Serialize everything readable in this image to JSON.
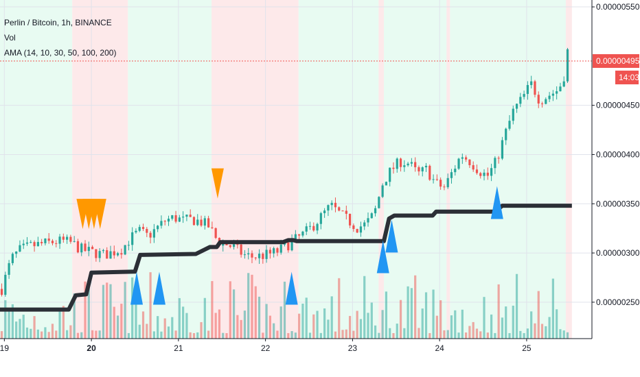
{
  "header": {
    "symbol_line": "Perlin / Bitcoin, 1h, BINANCE",
    "vol_label": "Vol",
    "ama_label": "AMA (14, 10, 30, 50, 100, 200)"
  },
  "price_tag": {
    "value": "0.00000495",
    "countdown": "14:03"
  },
  "colors": {
    "up": "#26a69a",
    "down": "#ef5350",
    "bg_green": "#e8fbf2",
    "bg_red": "#fde9ea",
    "ama_line": "#2b2f36",
    "marker_up": "#2196f3",
    "marker_down": "#ff9800",
    "price_line": "#ef5350"
  },
  "chart_data": {
    "type": "candlestick",
    "ylim": [
      2.13e-06,
      5.57e-06
    ],
    "xlim": [
      18.95,
      25.75
    ],
    "y_ticks": [
      "0.00000550",
      "0.00000450",
      "0.00000400",
      "0.00000350",
      "0.00000300",
      "0.00000250"
    ],
    "y_tick_values": [
      5.5e-06,
      4.5e-06,
      4e-06,
      3.5e-06,
      3e-06,
      2.5e-06
    ],
    "x_ticks": [
      "19",
      "20",
      "21",
      "22",
      "23",
      "24",
      "25"
    ],
    "x_tick_values": [
      19,
      20,
      21,
      22,
      23,
      24,
      25
    ],
    "regime_bands": [
      {
        "from": 18.95,
        "to": 19.78,
        "state": "bull"
      },
      {
        "from": 19.78,
        "to": 20.42,
        "state": "bear"
      },
      {
        "from": 20.42,
        "to": 21.38,
        "state": "bull"
      },
      {
        "from": 21.38,
        "to": 22.38,
        "state": "bear"
      },
      {
        "from": 22.38,
        "to": 23.3,
        "state": "bull"
      },
      {
        "from": 23.3,
        "to": 23.36,
        "state": "bear"
      },
      {
        "from": 23.36,
        "to": 24.08,
        "state": "bull"
      },
      {
        "from": 24.08,
        "to": 24.12,
        "state": "bear"
      },
      {
        "from": 24.12,
        "to": 25.45,
        "state": "bull"
      },
      {
        "from": 25.45,
        "to": 25.52,
        "state": "bear"
      }
    ],
    "price_path": [
      [
        18.97,
        2.635e-06
      ],
      [
        19.08,
        2.94e-06
      ],
      [
        19.18,
        3.03e-06
      ],
      [
        19.3,
        3.07e-06
      ],
      [
        19.42,
        3.09e-06
      ],
      [
        19.55,
        3.11e-06
      ],
      [
        19.67,
        3.12e-06
      ],
      [
        19.78,
        3.1e-06
      ],
      [
        19.87,
        3.04e-06
      ],
      [
        19.95,
        3.02e-06
      ],
      [
        20.05,
        3e-06
      ],
      [
        20.15,
        2.98e-06
      ],
      [
        20.25,
        3.01e-06
      ],
      [
        20.35,
        3.04e-06
      ],
      [
        20.45,
        3.15e-06
      ],
      [
        20.55,
        3.22e-06
      ],
      [
        20.65,
        3.17e-06
      ],
      [
        20.75,
        3.25e-06
      ],
      [
        20.85,
        3.33e-06
      ],
      [
        20.95,
        3.36e-06
      ],
      [
        21.05,
        3.33e-06
      ],
      [
        21.15,
        3.34e-06
      ],
      [
        21.25,
        3.32e-06
      ],
      [
        21.35,
        3.27e-06
      ],
      [
        21.45,
        3.12e-06
      ],
      [
        21.55,
        3.09e-06
      ],
      [
        21.65,
        3.05e-06
      ],
      [
        21.75,
        2.98e-06
      ],
      [
        21.85,
        2.96e-06
      ],
      [
        21.95,
        2.97e-06
      ],
      [
        22.05,
        2.99e-06
      ],
      [
        22.15,
        3.02e-06
      ],
      [
        22.25,
        3.08e-06
      ],
      [
        22.35,
        3.14e-06
      ],
      [
        22.45,
        3.2e-06
      ],
      [
        22.55,
        3.28e-06
      ],
      [
        22.65,
        3.38e-06
      ],
      [
        22.75,
        3.48e-06
      ],
      [
        22.85,
        3.4e-06
      ],
      [
        22.95,
        3.33e-06
      ],
      [
        23.05,
        3.26e-06
      ],
      [
        23.15,
        3.29e-06
      ],
      [
        23.25,
        3.4e-06
      ],
      [
        23.35,
        3.72e-06
      ],
      [
        23.45,
        3.85e-06
      ],
      [
        23.55,
        3.93e-06
      ],
      [
        23.65,
        3.91e-06
      ],
      [
        23.75,
        3.8e-06
      ],
      [
        23.85,
        3.85e-06
      ],
      [
        23.95,
        3.71e-06
      ],
      [
        24.05,
        3.66e-06
      ],
      [
        24.15,
        3.83e-06
      ],
      [
        24.25,
        4e-06
      ],
      [
        24.35,
        3.93e-06
      ],
      [
        24.45,
        3.84e-06
      ],
      [
        24.55,
        3.78e-06
      ],
      [
        24.65,
        3.93e-06
      ],
      [
        24.75,
        4.2e-06
      ],
      [
        24.85,
        4.45e-06
      ],
      [
        24.95,
        4.57e-06
      ],
      [
        25.05,
        4.72e-06
      ],
      [
        25.15,
        4.55e-06
      ],
      [
        25.25,
        4.6e-06
      ],
      [
        25.35,
        4.65e-06
      ],
      [
        25.42,
        4.75e-06
      ],
      [
        25.47,
        5.05e-06
      ]
    ],
    "ama_steps": [
      [
        18.95,
        2.425e-06
      ],
      [
        19.74,
        2.425e-06
      ],
      [
        19.82,
        2.57e-06
      ],
      [
        19.94,
        2.58e-06
      ],
      [
        20.0,
        2.8e-06
      ],
      [
        20.5,
        2.81e-06
      ],
      [
        20.56,
        2.98e-06
      ],
      [
        21.2,
        2.99e-06
      ],
      [
        21.36,
        3.06e-06
      ],
      [
        21.44,
        3.06e-06
      ],
      [
        21.48,
        3.11e-06
      ],
      [
        22.2,
        3.11e-06
      ],
      [
        22.26,
        3.13e-06
      ],
      [
        22.32,
        3.13e-06
      ],
      [
        22.36,
        3.12e-06
      ],
      [
        23.36,
        3.12e-06
      ],
      [
        23.42,
        3.35e-06
      ],
      [
        23.48,
        3.38e-06
      ],
      [
        23.92,
        3.38e-06
      ],
      [
        23.96,
        3.42e-06
      ],
      [
        24.64,
        3.42e-06
      ],
      [
        24.72,
        3.48e-06
      ],
      [
        25.52,
        3.48e-06
      ]
    ],
    "markers_up": [
      {
        "x": 20.52,
        "y": 2.475e-06
      },
      {
        "x": 20.78,
        "y": 2.475e-06
      },
      {
        "x": 22.3,
        "y": 2.475e-06
      },
      {
        "x": 23.35,
        "y": 2.795e-06
      },
      {
        "x": 23.45,
        "y": 3.005e-06
      },
      {
        "x": 24.66,
        "y": 3.345e-06
      }
    ],
    "markers_down": [
      {
        "x": 19.9,
        "y": 3.55e-06
      },
      {
        "x": 19.97,
        "y": 3.55e-06
      },
      {
        "x": 20.03,
        "y": 3.55e-06
      },
      {
        "x": 20.1,
        "y": 3.55e-06
      },
      {
        "x": 21.45,
        "y": 3.86e-06
      }
    ],
    "last_price": 4.95e-06,
    "volume_max_px": 90
  }
}
